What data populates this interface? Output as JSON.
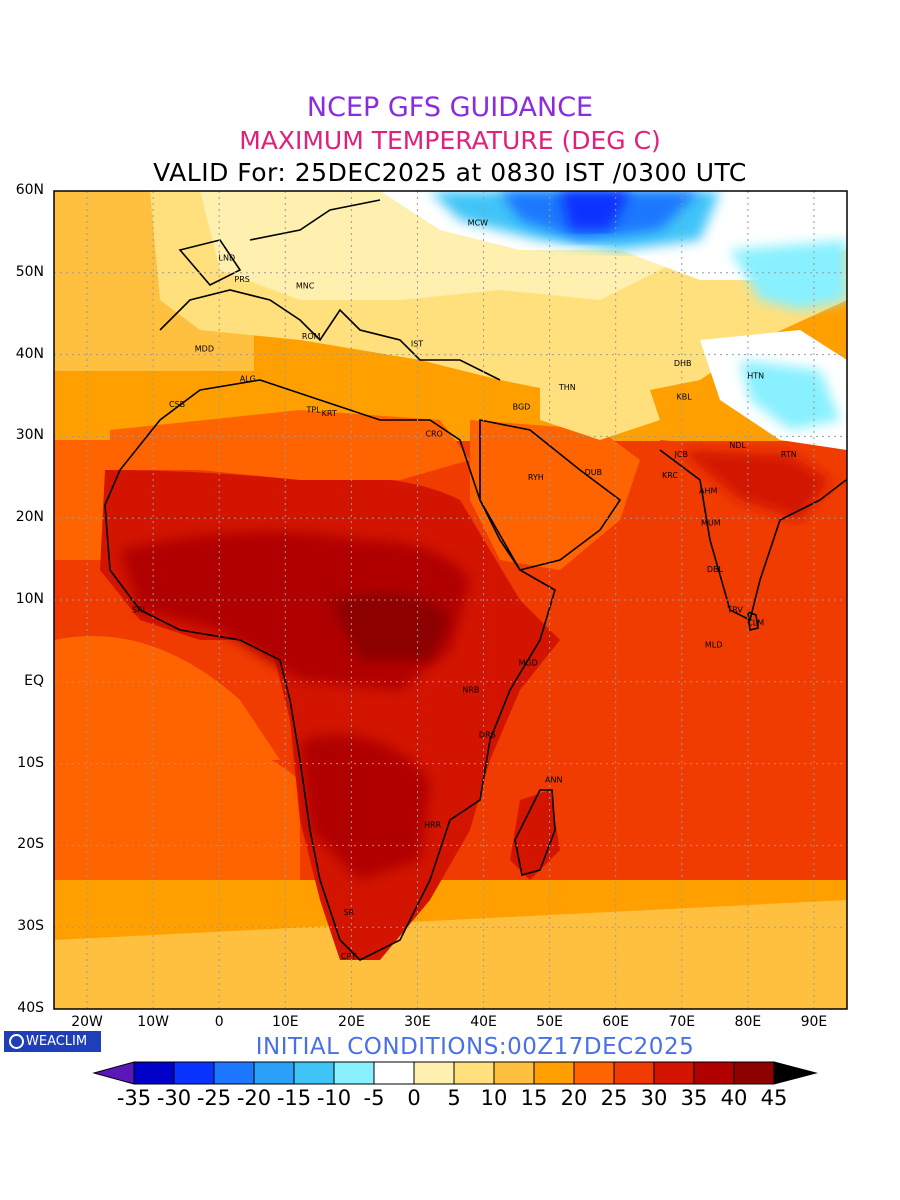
{
  "title": {
    "line1": "NCEP GFS GUIDANCE",
    "line2": "MAXIMUM TEMPERATURE (DEG C)",
    "line3": "VALID For: 25DEC2025 at 0830 IST /0300 UTC"
  },
  "colors": {
    "line1": "#8a2be2",
    "line2": "#e0207a"
  },
  "map_bounds": {
    "lon_min": -25,
    "lon_max": 95,
    "lat_min": -40,
    "lat_max": 60
  },
  "lat_labels": [
    {
      "text": "60N",
      "lat": 60
    },
    {
      "text": "50N",
      "lat": 50
    },
    {
      "text": "40N",
      "lat": 40
    },
    {
      "text": "30N",
      "lat": 30
    },
    {
      "text": "20N",
      "lat": 20
    },
    {
      "text": "10N",
      "lat": 10
    },
    {
      "text": "EQ",
      "lat": 0
    },
    {
      "text": "10S",
      "lat": -10
    },
    {
      "text": "20S",
      "lat": -20
    },
    {
      "text": "30S",
      "lat": -30
    },
    {
      "text": "40S",
      "lat": -40
    }
  ],
  "lon_labels": [
    {
      "text": "20W",
      "lon": -20
    },
    {
      "text": "10W",
      "lon": -10
    },
    {
      "text": "0",
      "lon": 0
    },
    {
      "text": "10E",
      "lon": 10
    },
    {
      "text": "20E",
      "lon": 20
    },
    {
      "text": "30E",
      "lon": 30
    },
    {
      "text": "40E",
      "lon": 40
    },
    {
      "text": "50E",
      "lon": 50
    },
    {
      "text": "60E",
      "lon": 60
    },
    {
      "text": "70E",
      "lon": 70
    },
    {
      "text": "80E",
      "lon": 80
    },
    {
      "text": "90E",
      "lon": 90
    }
  ],
  "cities": [
    {
      "code": "MCW",
      "lon": 37.6,
      "lat": 55.8
    },
    {
      "code": "LND",
      "lon": -0.1,
      "lat": 51.5
    },
    {
      "code": "PRS",
      "lon": 2.3,
      "lat": 48.9
    },
    {
      "code": "MNC",
      "lon": 11.6,
      "lat": 48.1
    },
    {
      "code": "ROM",
      "lon": 12.5,
      "lat": 41.9
    },
    {
      "code": "MDD",
      "lon": -3.7,
      "lat": 40.4
    },
    {
      "code": "IST",
      "lon": 29.0,
      "lat": 41.0
    },
    {
      "code": "ALG",
      "lon": 3.1,
      "lat": 36.7
    },
    {
      "code": "CSB",
      "lon": -7.6,
      "lat": 33.6
    },
    {
      "code": "TPL",
      "lon": 13.2,
      "lat": 32.9
    },
    {
      "code": "KRT",
      "lon": 15.5,
      "lat": 32.5
    },
    {
      "code": "CRO",
      "lon": 31.2,
      "lat": 30.0
    },
    {
      "code": "BGD",
      "lon": 44.4,
      "lat": 33.3
    },
    {
      "code": "THN",
      "lon": 51.4,
      "lat": 35.7
    },
    {
      "code": "DHB",
      "lon": 68.8,
      "lat": 38.6
    },
    {
      "code": "HTN",
      "lon": 79.9,
      "lat": 37.1
    },
    {
      "code": "KBL",
      "lon": 69.2,
      "lat": 34.5
    },
    {
      "code": "JCB",
      "lon": 68.9,
      "lat": 27.5
    },
    {
      "code": "NDL",
      "lon": 77.2,
      "lat": 28.6
    },
    {
      "code": "RTN",
      "lon": 85.0,
      "lat": 27.5
    },
    {
      "code": "RYH",
      "lon": 46.7,
      "lat": 24.7
    },
    {
      "code": "DUB",
      "lon": 55.3,
      "lat": 25.3
    },
    {
      "code": "KRC",
      "lon": 67.0,
      "lat": 24.9
    },
    {
      "code": "AHM",
      "lon": 72.6,
      "lat": 23.0
    },
    {
      "code": "MUM",
      "lon": 72.9,
      "lat": 19.1
    },
    {
      "code": "DBL",
      "lon": 73.8,
      "lat": 13.4
    },
    {
      "code": "TRV",
      "lon": 76.9,
      "lat": 8.5
    },
    {
      "code": "CLM",
      "lon": 79.9,
      "lat": 6.9
    },
    {
      "code": "MLD",
      "lon": 73.5,
      "lat": 4.2
    },
    {
      "code": "SRL",
      "lon": -13.2,
      "lat": 8.5
    },
    {
      "code": "MGD",
      "lon": 45.3,
      "lat": 2.0
    },
    {
      "code": "NRB",
      "lon": 36.8,
      "lat": -1.3
    },
    {
      "code": "DRS",
      "lon": 39.3,
      "lat": -6.8
    },
    {
      "code": "ANN",
      "lon": 49.3,
      "lat": -12.3
    },
    {
      "code": "HRR",
      "lon": 31.0,
      "lat": -17.8
    },
    {
      "code": "CPT",
      "lon": 18.4,
      "lat": -33.9
    },
    {
      "code": "SR",
      "lon": 18.8,
      "lat": -28.5
    }
  ],
  "colorbar": {
    "labels": [
      "-35",
      "-30",
      "-25",
      "-20",
      "-15",
      "-10",
      "-5",
      "0",
      "5",
      "10",
      "15",
      "20",
      "25",
      "30",
      "35",
      "40",
      "45"
    ],
    "colors": [
      "#5a18b8",
      "#0000c8",
      "#0a32ff",
      "#1e78ff",
      "#2aa0f8",
      "#40c4f8",
      "#88f0ff",
      "#ffffff",
      "#fff0b0",
      "#ffe07c",
      "#ffc040",
      "#ffa000",
      "#ff6400",
      "#f03c00",
      "#d21400",
      "#b00000",
      "#8c0000",
      "#000000"
    ]
  },
  "init_text": "INITIAL CONDITIONS:00Z17DEC2025",
  "logo_text": "WEACLIM"
}
